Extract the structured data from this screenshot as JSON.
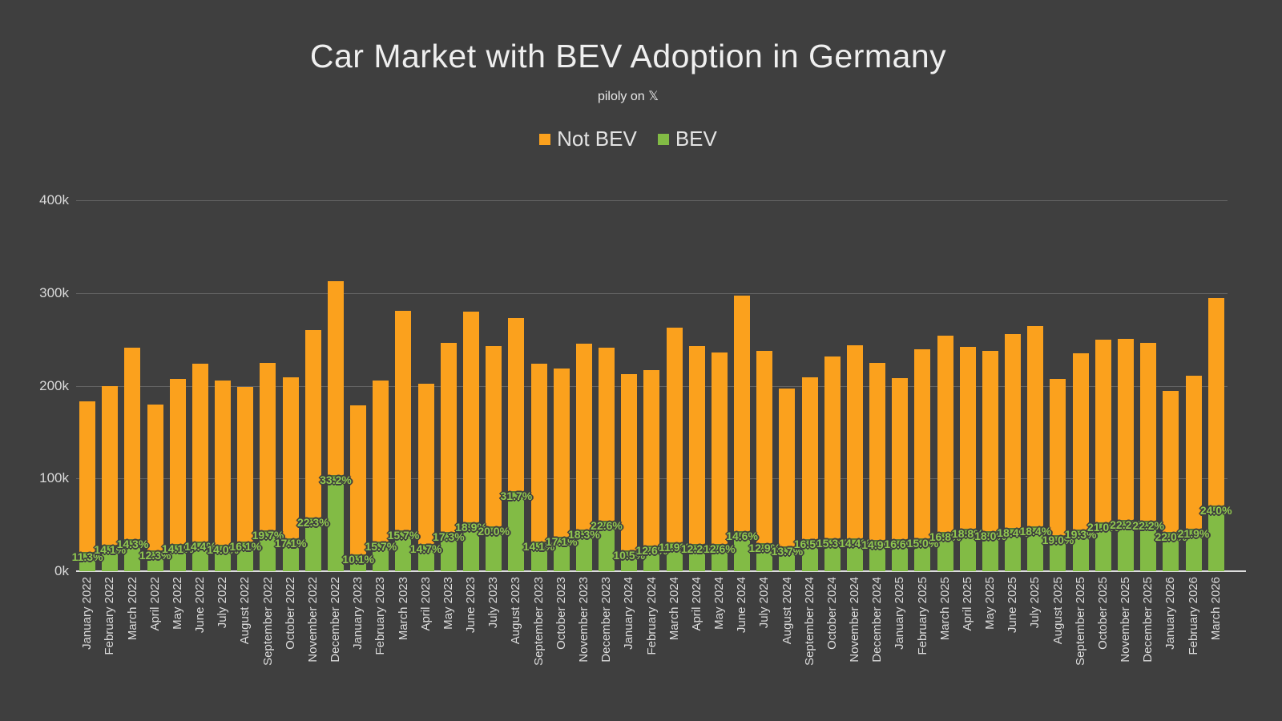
{
  "header": {
    "title": "Car Market with BEV Adoption in Germany",
    "subtitle": "piloly on 𝕏"
  },
  "legend": [
    {
      "label": "Not BEV",
      "color": "#FBA11D"
    },
    {
      "label": "BEV",
      "color": "#82BB45"
    }
  ],
  "colors": {
    "background": "#3F3F3F",
    "not_bev": "#FBA11D",
    "bev": "#82BB45",
    "bar_label": "#90C84F",
    "gridline": "#646464",
    "axis_text": "#D9D9D9"
  },
  "chart_data": {
    "type": "bar",
    "stacked": true,
    "title": "Car Market with BEV Adoption in Germany",
    "subtitle": "piloly on 𝕏",
    "xlabel": "",
    "ylabel": "",
    "legend_position": "top-center",
    "grid": true,
    "y_axis": {
      "ticks": [
        "0k",
        "100k",
        "200k",
        "300k",
        "400k"
      ],
      "ylim_units": [
        0,
        400000
      ]
    },
    "series": [
      {
        "name": "Not BEV",
        "color": "#FBA11D",
        "note": "not_bev_k = total_k - total_k*bev_share_pct/100"
      },
      {
        "name": "BEV",
        "color": "#82BB45",
        "note": "bev_k = total_k*bev_share_pct/100; share shown as label on each bar"
      }
    ],
    "categories": [
      "January 2022",
      "February 2022",
      "March 2022",
      "April 2022",
      "May 2022",
      "June 2022",
      "July 2022",
      "August 2022",
      "September 2022",
      "October 2022",
      "November 2022",
      "December 2022",
      "January 2023",
      "February 2023",
      "March 2023",
      "April 2023",
      "May 2023",
      "June 2023",
      "July 2023",
      "August 2023",
      "September 2023",
      "October 2023",
      "November 2023",
      "December 2023",
      "January 2024",
      "February 2024",
      "March 2024",
      "April 2024",
      "May 2024",
      "June 2024",
      "July 2024",
      "August 2024",
      "September 2024",
      "October 2024",
      "November 2024",
      "December 2024",
      "January 2025",
      "February 2025",
      "March 2025",
      "April 2025",
      "May 2025",
      "June 2025",
      "July 2025",
      "August 2025",
      "September 2025",
      "October 2025",
      "November 2025",
      "December 2025",
      "January 2026",
      "February 2026",
      "March 2026"
    ],
    "totals_k": [
      183,
      200,
      241,
      180,
      207,
      224,
      206,
      199,
      225,
      209,
      260,
      313,
      179,
      206,
      281,
      202,
      246,
      280,
      243,
      273,
      224,
      219,
      245,
      241,
      213,
      217,
      263,
      243,
      236,
      297,
      238,
      197,
      209,
      232,
      244,
      225,
      208,
      239,
      254,
      242,
      238,
      256,
      264,
      207,
      235,
      250,
      251,
      246,
      194,
      211,
      295
    ],
    "bev_share_pct": [
      11.3,
      14.1,
      14.3,
      12.3,
      14.1,
      14.4,
      14.0,
      16.1,
      19.7,
      17.1,
      22.3,
      33.2,
      10.1,
      15.7,
      15.7,
      14.7,
      17.3,
      18.9,
      20.0,
      31.7,
      14.1,
      17.1,
      18.3,
      22.6,
      10.5,
      12.6,
      11.9,
      12.2,
      12.6,
      14.6,
      12.9,
      13.7,
      16.5,
      15.3,
      14.4,
      14.9,
      16.6,
      15.0,
      16.8,
      18.8,
      18.0,
      18.4,
      18.4,
      19.0,
      19.3,
      21.0,
      22.2,
      22.2,
      22.0,
      21.9,
      24.0
    ]
  }
}
